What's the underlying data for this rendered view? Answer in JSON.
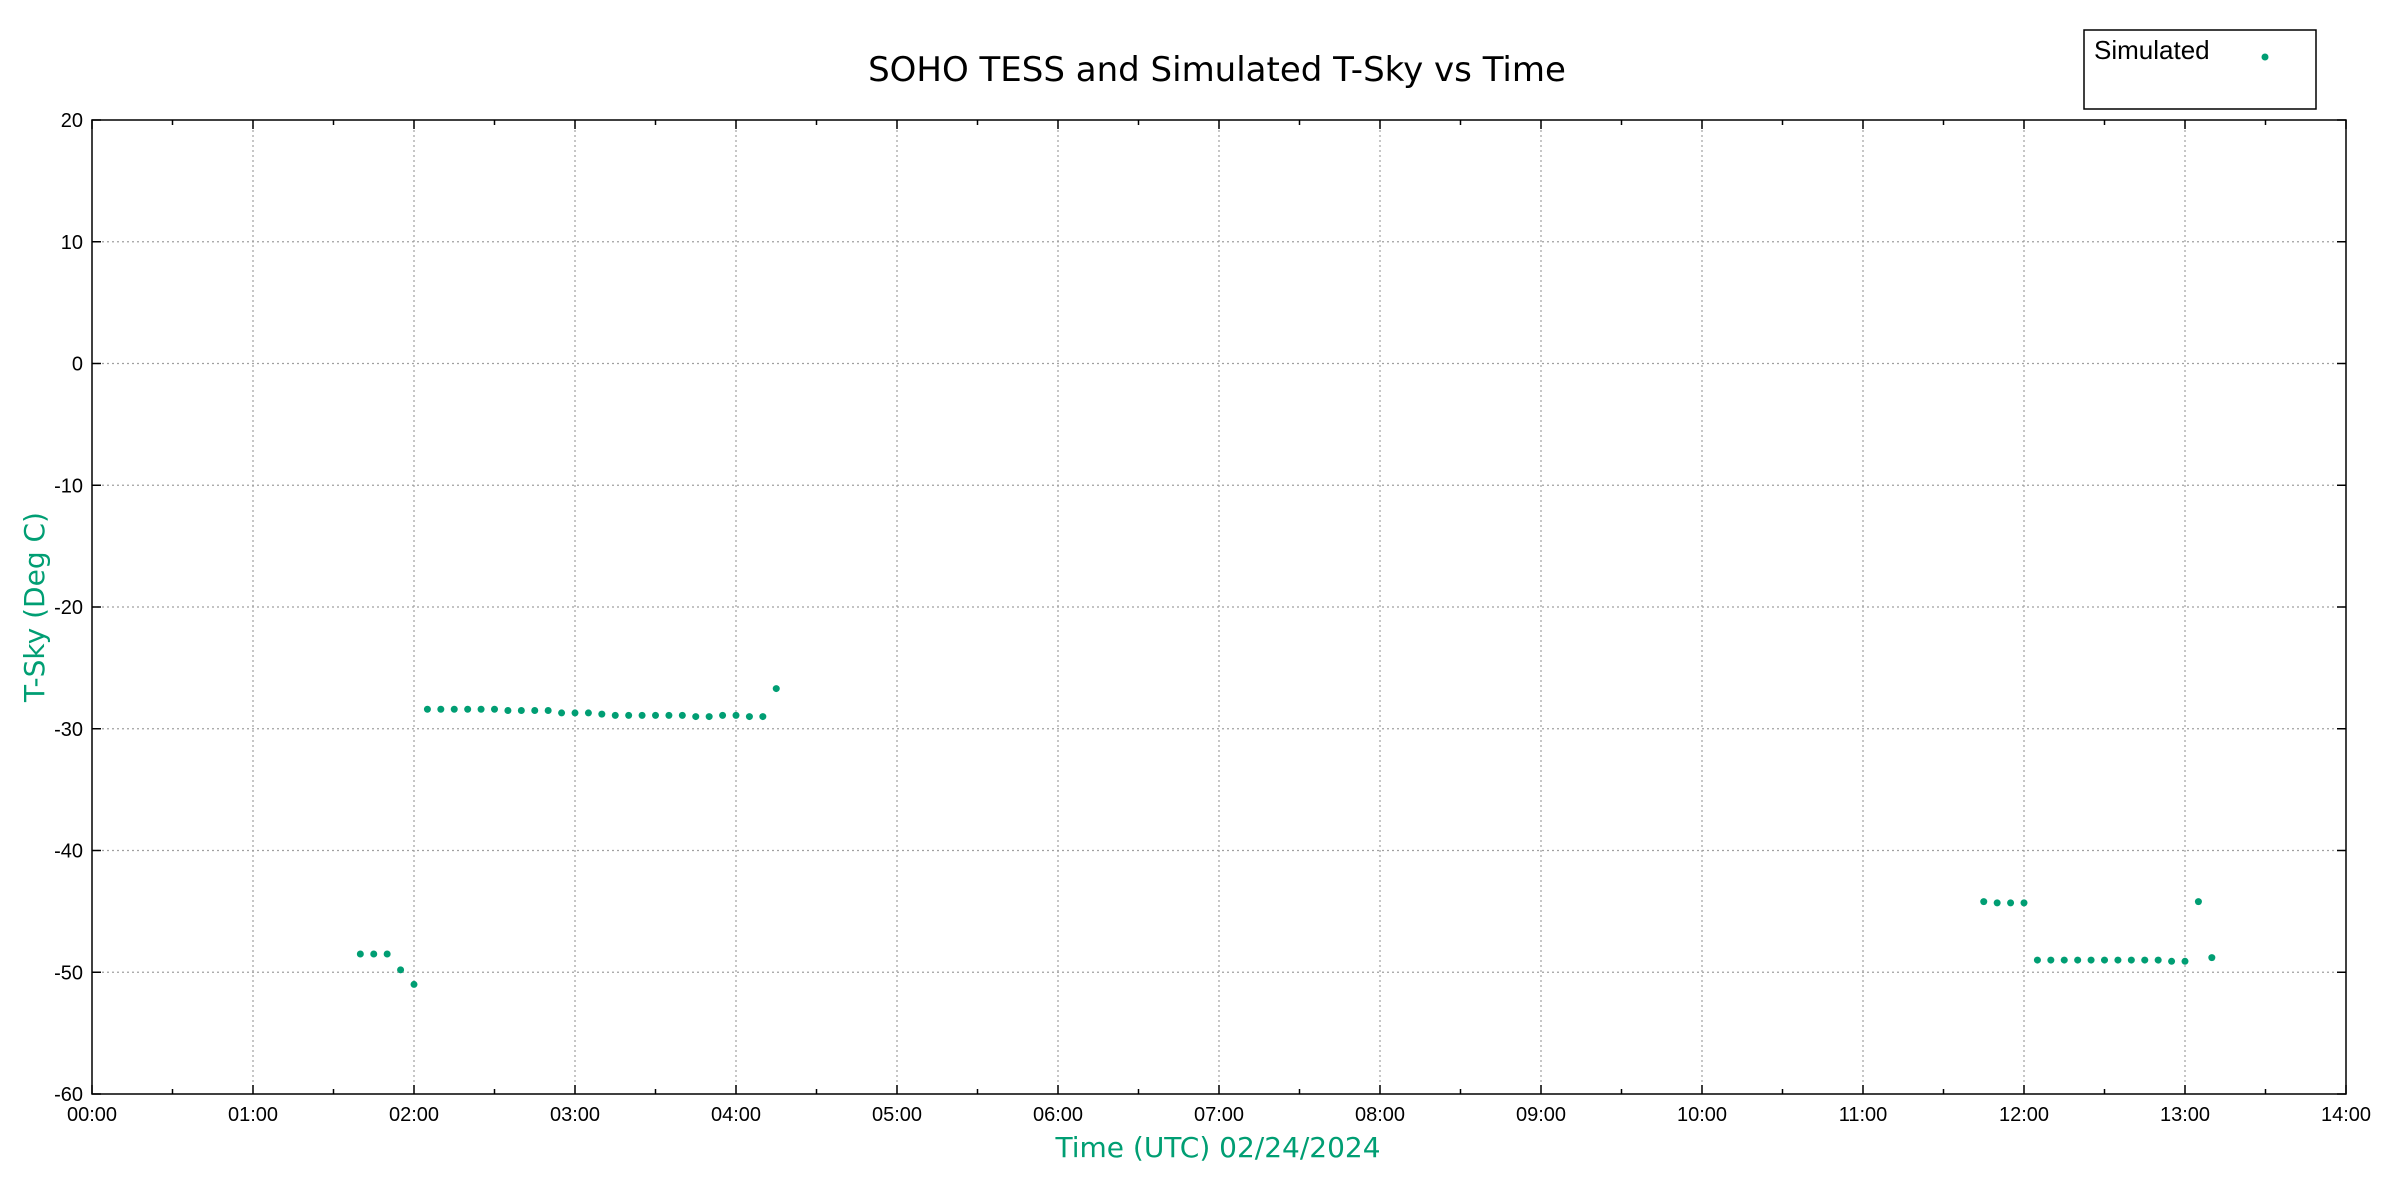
{
  "chart_data": {
    "type": "scatter",
    "title": "SOHO TESS and Simulated T-Sky vs Time",
    "xlabel": "Time (UTC)    02/24/2024",
    "ylabel": "T-Sky (Deg C)",
    "x_ticks": [
      "00:00",
      "01:00",
      "02:00",
      "03:00",
      "04:00",
      "05:00",
      "06:00",
      "07:00",
      "08:00",
      "09:00",
      "10:00",
      "11:00",
      "12:00",
      "13:00",
      "14:00"
    ],
    "xlim": [
      "00:00",
      "14:00"
    ],
    "ylim": [
      -60,
      20
    ],
    "y_ticks": [
      20,
      10,
      0,
      -10,
      -20,
      -30,
      -40,
      -50,
      -60
    ],
    "grid": true,
    "legend_position": "top-right",
    "series": [
      {
        "name": "Simulated",
        "color": "#009e73",
        "marker": "dot",
        "points": [
          [
            "01:40",
            -48.5
          ],
          [
            "01:45",
            -48.5
          ],
          [
            "01:50",
            -48.5
          ],
          [
            "01:55",
            -49.8
          ],
          [
            "02:00",
            -51.0
          ],
          [
            "02:05",
            -28.4
          ],
          [
            "02:10",
            -28.4
          ],
          [
            "02:15",
            -28.4
          ],
          [
            "02:20",
            -28.4
          ],
          [
            "02:25",
            -28.4
          ],
          [
            "02:30",
            -28.4
          ],
          [
            "02:35",
            -28.5
          ],
          [
            "02:40",
            -28.5
          ],
          [
            "02:45",
            -28.5
          ],
          [
            "02:50",
            -28.5
          ],
          [
            "02:55",
            -28.7
          ],
          [
            "03:00",
            -28.7
          ],
          [
            "03:05",
            -28.7
          ],
          [
            "03:10",
            -28.8
          ],
          [
            "03:15",
            -28.9
          ],
          [
            "03:20",
            -28.9
          ],
          [
            "03:25",
            -28.9
          ],
          [
            "03:30",
            -28.9
          ],
          [
            "03:35",
            -28.9
          ],
          [
            "03:40",
            -28.9
          ],
          [
            "03:45",
            -29.0
          ],
          [
            "03:50",
            -29.0
          ],
          [
            "03:55",
            -28.9
          ],
          [
            "04:00",
            -28.9
          ],
          [
            "04:05",
            -29.0
          ],
          [
            "04:10",
            -29.0
          ],
          [
            "04:15",
            -26.7
          ],
          [
            "11:45",
            -44.2
          ],
          [
            "11:50",
            -44.3
          ],
          [
            "11:55",
            -44.3
          ],
          [
            "12:00",
            -44.3
          ],
          [
            "12:05",
            -49.0
          ],
          [
            "12:10",
            -49.0
          ],
          [
            "12:15",
            -49.0
          ],
          [
            "12:20",
            -49.0
          ],
          [
            "12:25",
            -49.0
          ],
          [
            "12:30",
            -49.0
          ],
          [
            "12:35",
            -49.0
          ],
          [
            "12:40",
            -49.0
          ],
          [
            "12:45",
            -49.0
          ],
          [
            "12:50",
            -49.0
          ],
          [
            "12:55",
            -49.1
          ],
          [
            "13:00",
            -49.1
          ],
          [
            "13:05",
            -44.2
          ],
          [
            "13:10",
            -48.8
          ]
        ]
      }
    ]
  }
}
